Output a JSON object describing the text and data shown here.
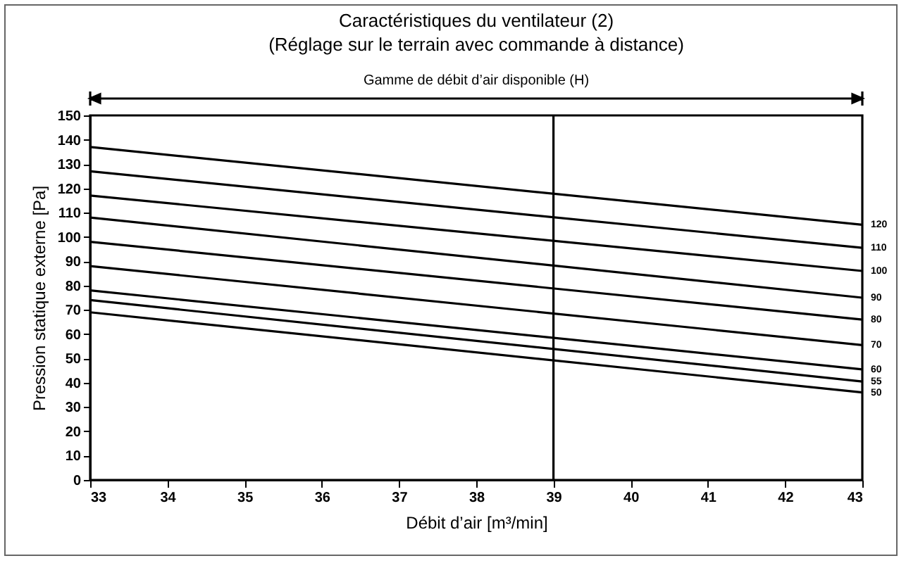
{
  "chart_data": {
    "type": "line",
    "title": "Caractéristiques du ventilateur (2)",
    "subtitle": "(Réglage sur le terrain avec commande à distance)",
    "xlabel": "Débit d’air [m³/min]",
    "ylabel": "Pression statique externe [Pa]",
    "annotations": [
      "Gamme de débit d’air disponible (H)"
    ],
    "x": [
      33,
      43
    ],
    "series": [
      {
        "name": "120",
        "color": "#000000",
        "values": [
          137,
          105
        ]
      },
      {
        "name": "110",
        "color": "#000000",
        "values": [
          127,
          95.5
        ]
      },
      {
        "name": "100",
        "color": "#000000",
        "values": [
          117,
          86
        ]
      },
      {
        "name": "90",
        "color": "#000000",
        "values": [
          108,
          75
        ]
      },
      {
        "name": "80",
        "color": "#000000",
        "values": [
          98,
          66
        ]
      },
      {
        "name": "70",
        "color": "#000000",
        "values": [
          88,
          55.5
        ]
      },
      {
        "name": "60",
        "color": "#000000",
        "values": [
          78,
          45.5
        ]
      },
      {
        "name": "55",
        "color": "#000000",
        "values": [
          74,
          40.5
        ]
      },
      {
        "name": "50",
        "color": "#000000",
        "values": [
          69,
          36
        ]
      }
    ],
    "xlim": [
      33,
      43
    ],
    "ylim": [
      0,
      150
    ],
    "xticks": [
      33,
      34,
      35,
      36,
      37,
      38,
      39,
      40,
      41,
      42,
      43
    ],
    "yticks": [
      0,
      10,
      20,
      30,
      40,
      50,
      60,
      70,
      80,
      90,
      100,
      110,
      120,
      130,
      140,
      150
    ],
    "ref_lines": [
      {
        "axis": "x",
        "value": 39,
        "color": "#000000"
      }
    ],
    "grid": false,
    "legend": false,
    "marker": "none",
    "line_style": "solid"
  }
}
